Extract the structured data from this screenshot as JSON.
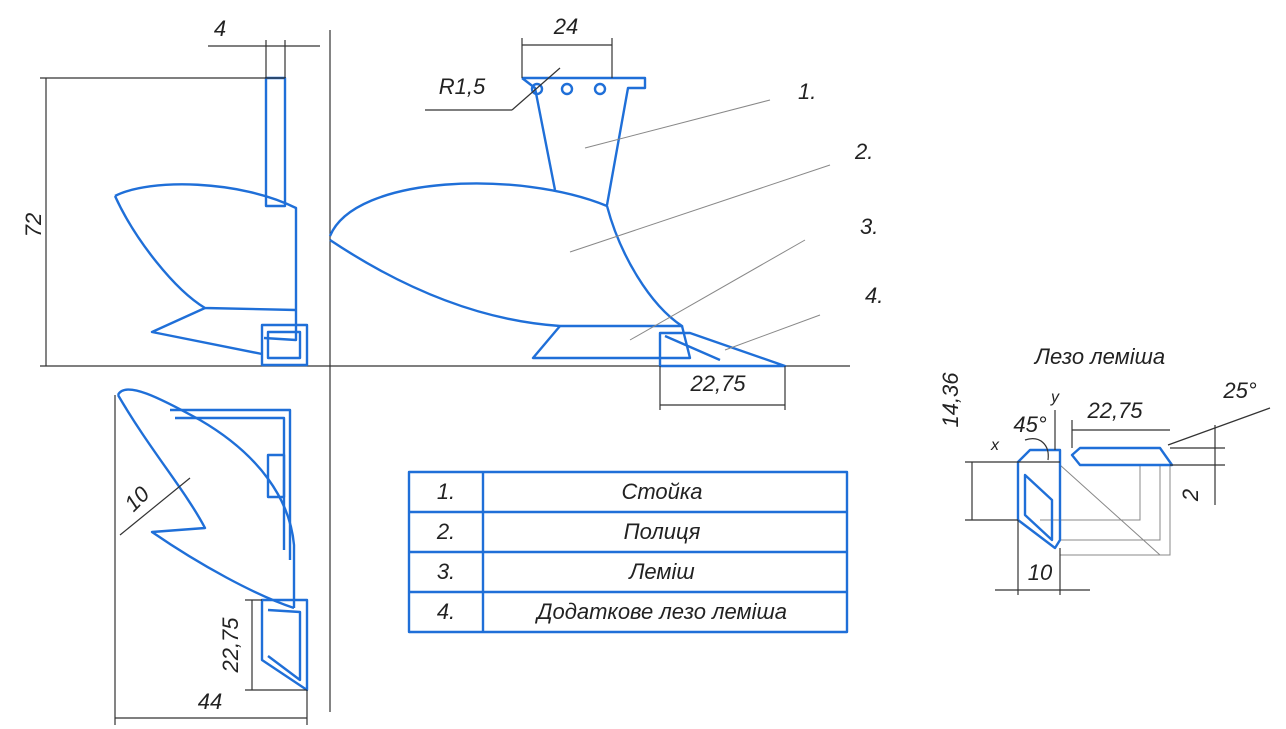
{
  "side_view": {
    "dims": {
      "width": "4",
      "height": "72"
    }
  },
  "front_view": {
    "dims": {
      "top": "24",
      "radius": "R1,5",
      "bottom": "22,75"
    },
    "callouts": [
      "1.",
      "2.",
      "3.",
      "4."
    ]
  },
  "top_view": {
    "dims": {
      "diagonal": "10",
      "vertical": "22,75",
      "width": "44"
    }
  },
  "table": {
    "rows": [
      [
        "1.",
        "Стойка"
      ],
      [
        "2.",
        "Полиця"
      ],
      [
        "3.",
        "Леміш"
      ],
      [
        "4.",
        "Додаткове лезо леміша"
      ]
    ]
  },
  "detail": {
    "title": "Лезо леміша",
    "dims": {
      "height": "14,36",
      "axis_y": "y",
      "axis_x": "x",
      "angle_left": "45°",
      "length": "22,75",
      "angle_right": "25°",
      "thickness": "2",
      "width": "10"
    }
  }
}
